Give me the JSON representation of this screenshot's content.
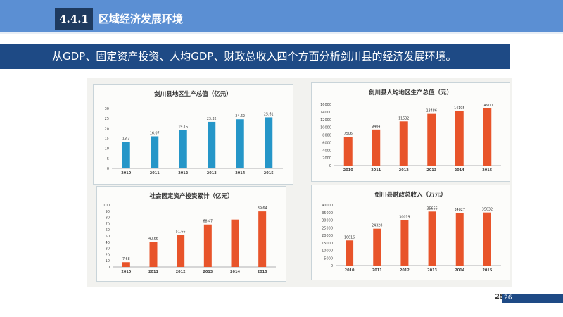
{
  "header": {
    "section_number": "4.4.1",
    "section_title": "区域经济发展环境"
  },
  "banner": {
    "text": "从GDP、固定资产投资、人均GDP、财政总收入四个方面分析剑川县的经济发展环境。"
  },
  "footer": {
    "page_current": "25",
    "page_total": "26"
  },
  "colors": {
    "blue_bar": "#2596c8",
    "orange_bar": "#e8542a",
    "banner": "#1e4a85",
    "topbar": "#5b8fd3"
  },
  "chart_data": [
    {
      "type": "bar",
      "title": "剑川县地区生产总值（亿元）",
      "categories": [
        "2010",
        "2011",
        "2012",
        "2013",
        "2014",
        "2015"
      ],
      "values": [
        13.3,
        16.07,
        19.15,
        23.32,
        24.62,
        25.61
      ],
      "value_labels": [
        "13.3",
        "16.07",
        "19.15",
        "23.32",
        "24.62",
        "25.61"
      ],
      "ylim": [
        0,
        30
      ],
      "yticks": [
        0,
        5,
        10,
        15,
        20,
        25,
        30
      ],
      "ytick_labels": [
        "0",
        "5",
        "10",
        "15",
        "20",
        "25",
        "30"
      ],
      "color": "#2596c8",
      "grid": false
    },
    {
      "type": "bar",
      "title": "剑川县人均地区生产总值（元）",
      "categories": [
        "2010",
        "2011",
        "2012",
        "2013",
        "2014",
        "2015"
      ],
      "values": [
        7506,
        9404,
        11532,
        13486,
        14195,
        14900
      ],
      "value_labels": [
        "7506",
        "9404",
        "11532",
        "13486",
        "14195",
        "14900"
      ],
      "ylim": [
        0,
        16000
      ],
      "yticks": [
        0,
        2000,
        4000,
        6000,
        8000,
        10000,
        12000,
        14000,
        16000
      ],
      "ytick_labels": [
        "0",
        "2000",
        "4000",
        "6000",
        "8000",
        "10000",
        "12000",
        "14000",
        "16000"
      ],
      "color": "#e8542a",
      "grid": false
    },
    {
      "type": "bar",
      "title": "社会固定资产投资累计（亿元）",
      "categories": [
        "2010",
        "2011",
        "2012",
        "2013",
        "2014",
        "2015"
      ],
      "values": [
        7.68,
        40.66,
        51.66,
        68.47,
        76.5,
        89.64
      ],
      "value_labels": [
        "7.68",
        "40.66",
        "51.66",
        "68.47",
        "",
        "89.64"
      ],
      "ylim": [
        0,
        100
      ],
      "yticks": [
        0,
        10,
        20,
        30,
        40,
        50,
        60,
        70,
        80,
        90,
        100
      ],
      "ytick_labels": [
        "0",
        "10",
        "20",
        "30",
        "40",
        "50",
        "60",
        "70",
        "80",
        "90",
        "100"
      ],
      "color": "#e8542a",
      "grid": false
    },
    {
      "type": "bar",
      "title": "剑川县财政总收入（万元）",
      "categories": [
        "2010",
        "2011",
        "2012",
        "2013",
        "2014",
        "2015"
      ],
      "values": [
        16616,
        24328,
        30019,
        35666,
        34827,
        35032
      ],
      "value_labels": [
        "16616",
        "24328",
        "30019",
        "35666",
        "34827",
        "35032"
      ],
      "ylim": [
        0,
        40000
      ],
      "yticks": [
        0,
        5000,
        10000,
        15000,
        20000,
        25000,
        30000,
        35000,
        40000
      ],
      "ytick_labels": [
        "0",
        "5000",
        "10000",
        "15000",
        "20000",
        "25000",
        "30000",
        "35000",
        "40000"
      ],
      "color": "#e8542a",
      "grid": false
    }
  ]
}
